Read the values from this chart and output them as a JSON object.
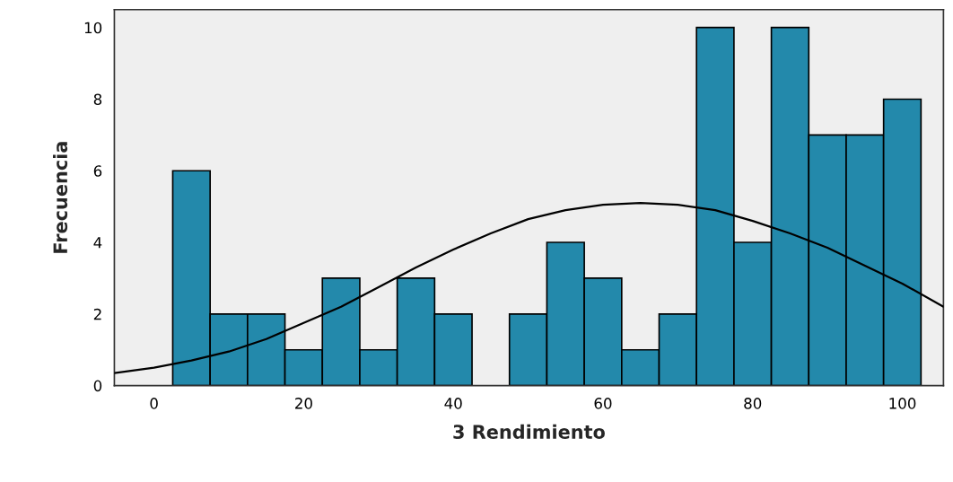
{
  "chart_data": {
    "type": "histogram",
    "xlabel": "3 Rendimiento",
    "ylabel": "Frecuencia",
    "bins": [
      2.5,
      7.5,
      12.5,
      17.5,
      22.5,
      27.5,
      32.5,
      37.5,
      42.5,
      47.5,
      52.5,
      57.5,
      62.5,
      67.5,
      72.5,
      77.5,
      82.5,
      87.5,
      92.5,
      97.5,
      102.5
    ],
    "series": [
      {
        "color": "#2389ab",
        "values": [
          6,
          2,
          2,
          1,
          3,
          1,
          3,
          2,
          0,
          2,
          4,
          3,
          1,
          2,
          10,
          4,
          10,
          7,
          7,
          8
        ]
      },
      {
        "type": "line",
        "color": "#000000",
        "x": [
          -5.3,
          0,
          5,
          10,
          15,
          20,
          25,
          30,
          35,
          40,
          45,
          50,
          55,
          60,
          65,
          70,
          75,
          80,
          85,
          90,
          95,
          100,
          105.5
        ],
        "values": [
          0.35,
          0.5,
          0.7,
          0.95,
          1.3,
          1.75,
          2.2,
          2.75,
          3.3,
          3.8,
          4.25,
          4.65,
          4.9,
          5.05,
          5.1,
          5.05,
          4.9,
          4.6,
          4.25,
          3.85,
          3.35,
          2.85,
          2.2
        ]
      }
    ],
    "xlim": [
      -5.3,
      105.5
    ],
    "xticks": [
      0,
      20,
      40,
      60,
      80,
      100
    ],
    "ylim": [
      0,
      10.5
    ],
    "yticks": [
      0,
      2,
      4,
      6,
      8,
      10
    ],
    "grid": false,
    "legend": false
  }
}
